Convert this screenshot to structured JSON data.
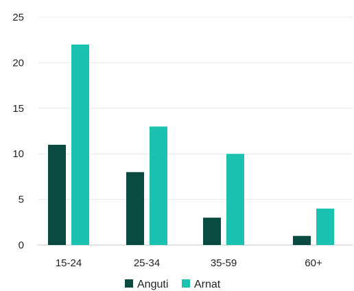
{
  "chart_data": {
    "type": "bar",
    "categories": [
      "15-24",
      "25-34",
      "35-59",
      "60+"
    ],
    "series": [
      {
        "name": "Anguti",
        "values": [
          11,
          8,
          3,
          1
        ],
        "color": "#0a4a40"
      },
      {
        "name": "Arnat",
        "values": [
          22,
          13,
          10,
          4
        ],
        "color": "#1cc2b0"
      }
    ],
    "ylim": [
      0,
      25
    ],
    "yticks": [
      "0",
      "5",
      "10",
      "15",
      "20",
      "25"
    ],
    "grid": true,
    "legend": "bottom"
  }
}
